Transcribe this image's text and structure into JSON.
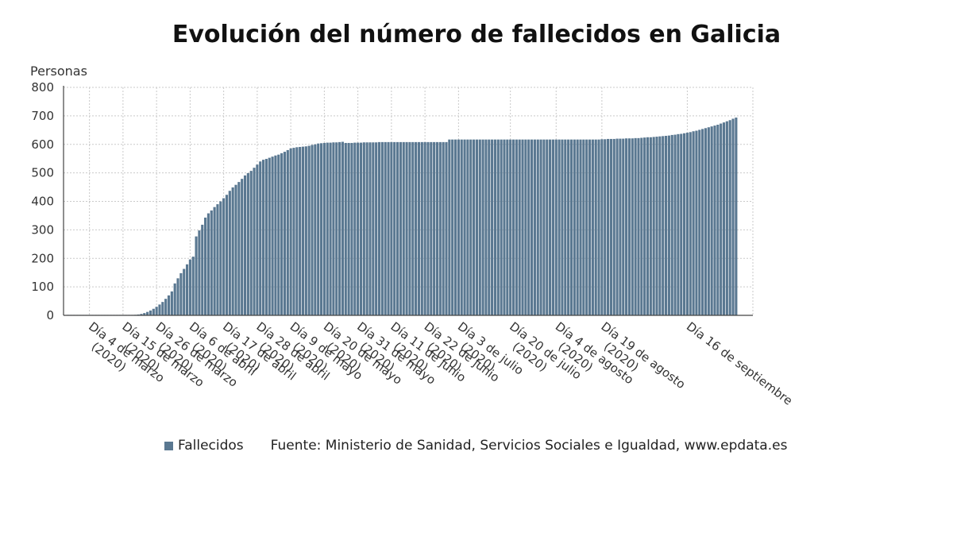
{
  "colors": {
    "bar": "#5a7891",
    "grid": "#c9c9c9",
    "axis": "#444444"
  },
  "chart_data": {
    "type": "bar",
    "title": "Evolución del número de fallecidos en Galicia",
    "ylabel": "Personas",
    "ylim": [
      0,
      800
    ],
    "yticks": [
      0,
      100,
      200,
      300,
      400,
      500,
      600,
      700,
      800
    ],
    "x_start": "2020-02-26",
    "x_tick_labels": [
      {
        "date": "2020-03-04",
        "label": "Día 4 de marzo (2020)"
      },
      {
        "date": "2020-03-15",
        "label": "Día 15 de marzo (2020)"
      },
      {
        "date": "2020-03-26",
        "label": "Día 26 de marzo (2020)"
      },
      {
        "date": "2020-04-06",
        "label": "Día 6 de abril (2020)"
      },
      {
        "date": "2020-04-17",
        "label": "Día 17 de abril (2020)"
      },
      {
        "date": "2020-04-28",
        "label": "Día 28 de abril (2020)"
      },
      {
        "date": "2020-05-09",
        "label": "Día 9 de mayo (2020)"
      },
      {
        "date": "2020-05-20",
        "label": "Día 20 de mayo (2020)"
      },
      {
        "date": "2020-05-31",
        "label": "Día 31 de mayo (2020)"
      },
      {
        "date": "2020-06-11",
        "label": "Día 11 de junio (2020)"
      },
      {
        "date": "2020-06-22",
        "label": "Día 22 de junio (2020)"
      },
      {
        "date": "2020-07-03",
        "label": "Día 3 de julio (2020)"
      },
      {
        "date": "2020-07-20",
        "label": "Día 20 de julio (2020)"
      },
      {
        "date": "2020-08-04",
        "label": "Día 4 de agosto (2020)"
      },
      {
        "date": "2020-08-19",
        "label": "Día 19 de agosto (2020)"
      },
      {
        "date": "2020-09-16",
        "label": "Día 16 de septiembre"
      }
    ],
    "series": [
      {
        "name": "Fallecidos",
        "values": [
          0,
          0,
          0,
          0,
          0,
          0,
          0,
          0,
          0,
          0,
          0,
          0,
          0,
          0,
          0,
          0,
          0,
          0,
          0,
          0,
          1,
          1,
          2,
          3,
          5,
          8,
          12,
          17,
          23,
          30,
          38,
          47,
          58,
          70,
          84,
          112,
          130,
          148,
          163,
          179,
          196,
          206,
          277,
          298,
          318,
          343,
          358,
          368,
          380,
          390,
          400,
          411,
          423,
          437,
          449,
          458,
          468,
          479,
          491,
          499,
          507,
          518,
          529,
          540,
          546,
          549,
          553,
          557,
          561,
          564,
          569,
          574,
          580,
          586,
          588,
          590,
          591,
          592,
          593,
          595,
          598,
          600,
          603,
          604,
          605,
          606,
          606,
          607,
          607,
          608,
          609,
          605,
          605,
          605,
          606,
          606,
          606,
          607,
          607,
          607,
          607,
          607,
          608,
          608,
          608,
          608,
          608,
          608,
          608,
          608,
          608,
          608,
          608,
          608,
          608,
          608,
          608,
          608,
          608,
          608,
          608,
          608,
          608,
          608,
          608,
          617,
          617,
          617,
          617,
          617,
          617,
          617,
          617,
          617,
          617,
          617,
          617,
          617,
          617,
          617,
          617,
          617,
          617,
          617,
          617,
          617,
          617,
          617,
          617,
          617,
          617,
          617,
          617,
          617,
          617,
          617,
          617,
          617,
          617,
          617,
          617,
          617,
          617,
          617,
          617,
          617,
          617,
          617,
          617,
          617,
          617,
          617,
          617,
          617,
          617,
          618,
          618,
          619,
          619,
          619,
          620,
          620,
          620,
          621,
          621,
          621,
          622,
          622,
          623,
          624,
          625,
          625,
          626,
          627,
          628,
          629,
          630,
          631,
          633,
          634,
          636,
          637,
          639,
          641,
          643,
          646,
          648,
          651,
          654,
          657,
          660,
          663,
          666,
          669,
          673,
          677,
          681,
          685,
          690,
          694
        ]
      }
    ],
    "legend": [
      "Fallecidos"
    ]
  },
  "legend_label": "Fallecidos",
  "source": "Fuente: Ministerio de Sanidad, Servicios Sociales e Igualdad, www.epdata.es"
}
